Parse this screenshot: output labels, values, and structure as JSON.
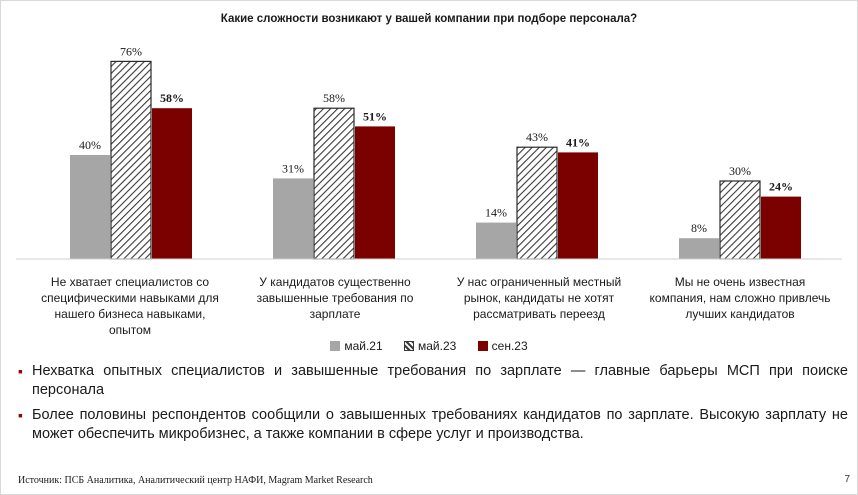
{
  "chart_data": {
    "type": "bar",
    "title": "Какие сложности возникают у вашей компании при подборе персонала?",
    "categories": [
      "Не хватает специалистов со специфическими навыками для нашего бизнеса навыками, опытом",
      "У кандидатов существенно завышенные требования по зарплате",
      "У нас ограниченный местный рынок, кандидаты не хотят рассматривать переезд",
      "Мы не очень известная компания, нам сложно привлечь лучших кандидатов"
    ],
    "series": [
      {
        "name": "май.21",
        "values": [
          40,
          31,
          14,
          8
        ],
        "labels": [
          "40%",
          "31%",
          "14%",
          "8%"
        ],
        "color": "#a6a6a6",
        "pattern": "solid",
        "label_bold": false
      },
      {
        "name": "май.23",
        "values": [
          76,
          58,
          43,
          30
        ],
        "labels": [
          "76%",
          "58%",
          "43%",
          "30%"
        ],
        "color": "#3a3a3a",
        "pattern": "hatch",
        "label_bold": false
      },
      {
        "name": "сен.23",
        "values": [
          58,
          51,
          41,
          24
        ],
        "labels": [
          "58%",
          "51%",
          "41%",
          "24%"
        ],
        "color": "#7b0000",
        "pattern": "solid",
        "label_bold": true
      }
    ],
    "ylim": [
      0,
      80
    ],
    "xlabel": "",
    "ylabel": "",
    "legend_position": "bottom"
  },
  "category_labels": {
    "c0": "Не хватает специалистов со специфическими навыками для нашего бизнеса навыками, опытом",
    "c1": "У кандидатов существенно завышенные требования по зарплате",
    "c2": "У нас ограниченный местный рынок, кандидаты не хотят рассматривать переезд",
    "c3": "Мы не очень известная компания, нам сложно привлечь лучших кандидатов"
  },
  "legend": {
    "s0": "май.21",
    "s1": "май.23",
    "s2": "сен.23"
  },
  "bullets": {
    "b0": "Нехватка опытных специалистов и завышенные требования по зарплате — главные барьеры МСП при поиске персонала",
    "b1": "Более половины респондентов сообщили о завышенных требованиях кандидатов по зарплате. Высокую зарплату не может обеспечить микробизнес, а также компании в сфере услуг и производства."
  },
  "source": "Источник: ПСБ Аналитика, Аналитический центр НАФИ, Magram Market Research",
  "page_number": "7",
  "colors": {
    "accent": "#8b0a0a",
    "grey": "#a6a6a6",
    "dark_red": "#7b0000",
    "hatch": "#3a3a3a"
  }
}
